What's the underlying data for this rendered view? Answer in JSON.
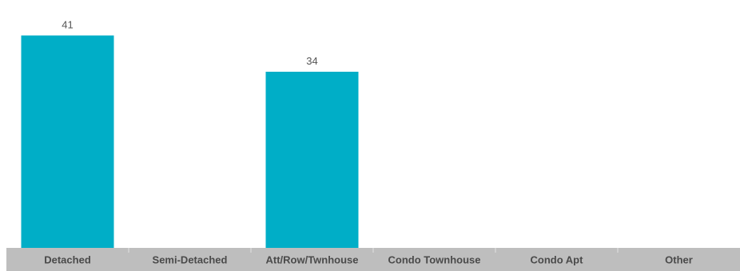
{
  "chart_data": {
    "type": "bar",
    "categories": [
      "Detached",
      "Semi-Detached",
      "Att/Row/Twnhouse",
      "Condo Townhouse",
      "Condo Apt",
      "Other"
    ],
    "values": [
      41,
      0,
      34,
      0,
      0,
      0
    ],
    "data_labels": [
      "41",
      "",
      "34",
      "",
      "",
      ""
    ],
    "ylim": [
      0,
      42
    ],
    "grid": false,
    "legend": "none",
    "title": "",
    "xlabel": "",
    "ylabel": ""
  },
  "colors": {
    "bar": "#00AEC7",
    "axis_band": "#BEBEBE",
    "separator": "#E2E2E2"
  }
}
